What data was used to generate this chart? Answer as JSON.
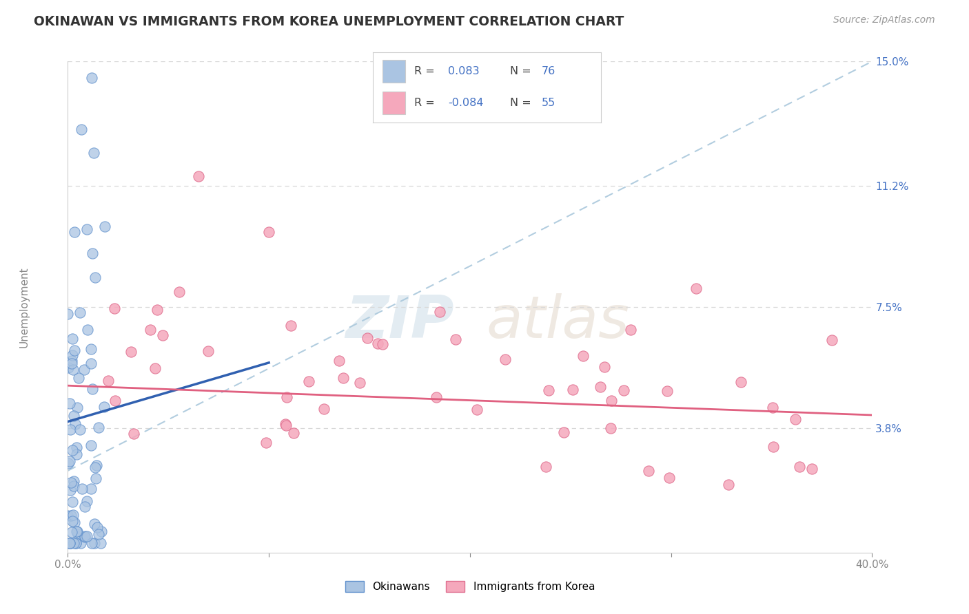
{
  "title": "OKINAWAN VS IMMIGRANTS FROM KOREA UNEMPLOYMENT CORRELATION CHART",
  "source": "Source: ZipAtlas.com",
  "ylabel": "Unemployment",
  "xmin": 0.0,
  "xmax": 0.4,
  "ymin": 0.0,
  "ymax": 0.15,
  "ytick_vals": [
    0.038,
    0.075,
    0.112,
    0.15
  ],
  "ytick_labels": [
    "3.8%",
    "7.5%",
    "11.2%",
    "15.0%"
  ],
  "xticks": [
    0.0,
    0.1,
    0.2,
    0.3,
    0.4
  ],
  "xtick_labels": [
    "0.0%",
    "",
    "",
    "",
    "40.0%"
  ],
  "blue_R": 0.083,
  "blue_N": 76,
  "pink_R": -0.084,
  "pink_N": 55,
  "blue_color": "#aac4e2",
  "pink_color": "#f5a8bc",
  "blue_edge_color": "#6090cc",
  "pink_edge_color": "#e07090",
  "blue_line_color": "#3060b0",
  "pink_line_color": "#e06080",
  "ref_line_color": "#aac8dc",
  "axis_color": "#4472c4",
  "text_color": "#333333",
  "tick_color": "#888888",
  "background_color": "#ffffff",
  "grid_color": "#d8d8d8",
  "legend_border_color": "#cccccc",
  "blue_trend_x": [
    0.0,
    0.1
  ],
  "blue_trend_y": [
    0.04,
    0.058
  ],
  "pink_trend_x": [
    0.0,
    0.4
  ],
  "pink_trend_y": [
    0.051,
    0.042
  ],
  "ref_line_x": [
    0.0,
    0.4
  ],
  "ref_line_y": [
    0.025,
    0.15
  ]
}
